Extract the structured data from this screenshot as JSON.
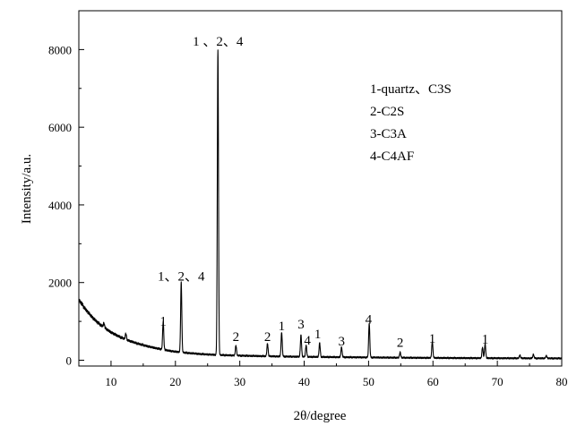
{
  "chart_data": {
    "type": "line",
    "title": "",
    "xlabel": "2θ/degree",
    "ylabel": "Intensity/a.u.",
    "xlim": [
      5,
      80
    ],
    "ylim": [
      -150,
      9000
    ],
    "x_ticks": [
      10,
      20,
      30,
      40,
      50,
      60,
      70,
      80
    ],
    "y_ticks": [
      0,
      2000,
      4000,
      6000,
      8000
    ],
    "grid": false,
    "legend_position": "top-right",
    "legend": [
      "1-quartz、C3S",
      "2-C2S",
      "3-C3A",
      "4-C4AF"
    ],
    "series": [
      {
        "color": "#000000",
        "background": [
          [
            5,
            1560
          ],
          [
            6,
            1320
          ],
          [
            7,
            1120
          ],
          [
            8,
            960
          ],
          [
            9,
            830
          ],
          [
            10,
            720
          ],
          [
            11,
            630
          ],
          [
            12,
            555
          ],
          [
            13,
            490
          ],
          [
            14,
            435
          ],
          [
            15,
            390
          ],
          [
            16,
            345
          ],
          [
            17,
            310
          ],
          [
            18,
            275
          ],
          [
            19,
            245
          ],
          [
            20,
            220
          ],
          [
            22,
            185
          ],
          [
            24,
            158
          ],
          [
            26,
            140
          ],
          [
            28,
            128
          ],
          [
            30,
            118
          ],
          [
            35,
            100
          ],
          [
            40,
            88
          ],
          [
            45,
            80
          ],
          [
            50,
            72
          ],
          [
            55,
            65
          ],
          [
            60,
            60
          ],
          [
            65,
            55
          ],
          [
            70,
            52
          ],
          [
            75,
            50
          ],
          [
            80,
            48
          ]
        ],
        "peaks": [
          {
            "x": 8.9,
            "y": 120
          },
          {
            "x": 12.3,
            "y": 150
          },
          {
            "x": 18.1,
            "y": 720
          },
          {
            "x": 20.9,
            "y": 1800
          },
          {
            "x": 26.6,
            "y": 7850
          },
          {
            "x": 29.4,
            "y": 260
          },
          {
            "x": 34.3,
            "y": 330
          },
          {
            "x": 36.5,
            "y": 620
          },
          {
            "x": 39.5,
            "y": 560
          },
          {
            "x": 40.3,
            "y": 300
          },
          {
            "x": 42.4,
            "y": 360
          },
          {
            "x": 45.8,
            "y": 260
          },
          {
            "x": 50.1,
            "y": 880
          },
          {
            "x": 54.9,
            "y": 140
          },
          {
            "x": 59.9,
            "y": 420
          },
          {
            "x": 67.7,
            "y": 280
          },
          {
            "x": 68.1,
            "y": 370
          },
          {
            "x": 73.5,
            "y": 80
          },
          {
            "x": 75.6,
            "y": 100
          },
          {
            "x": 77.6,
            "y": 70
          }
        ]
      }
    ],
    "annotations": [
      {
        "text": "1 、2、4",
        "x": 26.6,
        "y": 8100
      },
      {
        "text": "1、2、4",
        "x": 20.9,
        "y": 2050
      },
      {
        "text": "1",
        "x": 18.1,
        "y": 900
      },
      {
        "text": "2",
        "x": 29.4,
        "y": 500
      },
      {
        "text": "2",
        "x": 34.3,
        "y": 500
      },
      {
        "text": "1",
        "x": 36.5,
        "y": 770
      },
      {
        "text": "3",
        "x": 39.5,
        "y": 820
      },
      {
        "text": "4",
        "x": 40.5,
        "y": 400
      },
      {
        "text": "1",
        "x": 42.1,
        "y": 560
      },
      {
        "text": "3",
        "x": 45.8,
        "y": 380
      },
      {
        "text": "4",
        "x": 50.0,
        "y": 940
      },
      {
        "text": "2",
        "x": 54.9,
        "y": 340
      },
      {
        "text": "1",
        "x": 59.9,
        "y": 450
      },
      {
        "text": "1",
        "x": 68.1,
        "y": 440
      }
    ]
  }
}
